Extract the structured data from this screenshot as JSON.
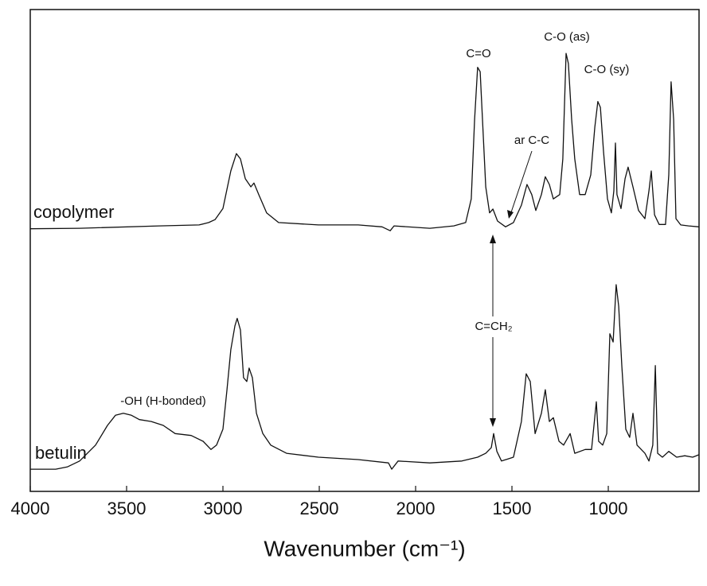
{
  "chart_data": {
    "type": "line",
    "xlabel": "Wavenumber (cm⁻¹)",
    "xlim": [
      4000,
      529
    ],
    "ylim": [
      0,
      100
    ],
    "xticks": [
      4000,
      3500,
      3000,
      2500,
      2000,
      1500,
      1000
    ],
    "grid": false,
    "series": [
      {
        "name": "copolymer",
        "color": "#111111",
        "x": [
          4000,
          3744,
          3331,
          3124,
          3074,
          3041,
          3000,
          2959,
          2930,
          2909,
          2884,
          2855,
          2839,
          2814,
          2773,
          2711,
          2504,
          2298,
          2174,
          2132,
          2112,
          1926,
          1802,
          1740,
          1711,
          1694,
          1678,
          1665,
          1653,
          1636,
          1616,
          1599,
          1575,
          1533,
          1492,
          1451,
          1422,
          1397,
          1376,
          1347,
          1327,
          1306,
          1285,
          1252,
          1236,
          1219,
          1207,
          1190,
          1174,
          1149,
          1120,
          1091,
          1070,
          1054,
          1041,
          1025,
          1004,
          984,
          971,
          963,
          955,
          934,
          913,
          897,
          872,
          843,
          810,
          789,
          777,
          760,
          736,
          703,
          686,
          674,
          661,
          649,
          624,
          583,
          529
        ],
        "values": [
          54.5,
          54.6,
          55.1,
          55.3,
          55.8,
          56.4,
          58.7,
          66.5,
          70.1,
          69.0,
          64.9,
          63.2,
          64.0,
          61.6,
          57.8,
          55.8,
          55.3,
          55.3,
          54.9,
          54.1,
          55.1,
          54.6,
          55.1,
          55.8,
          60.7,
          77.2,
          88.0,
          87.1,
          77.2,
          63.2,
          57.8,
          58.6,
          56.1,
          54.9,
          55.8,
          59.4,
          63.7,
          61.6,
          58.3,
          61.6,
          65.3,
          63.7,
          60.7,
          61.6,
          69.0,
          90.9,
          88.8,
          77.2,
          69.0,
          61.6,
          61.6,
          65.7,
          75.6,
          80.9,
          79.7,
          70.6,
          60.7,
          57.8,
          62.4,
          72.3,
          61.6,
          58.7,
          64.9,
          67.3,
          63.2,
          58.3,
          56.6,
          62.4,
          66.5,
          57.4,
          55.4,
          55.4,
          65.7,
          85.0,
          77.2,
          56.6,
          55.3,
          55.1,
          54.9
        ]
      },
      {
        "name": "betulin",
        "color": "#111111",
        "x": [
          4000,
          3868,
          3806,
          3744,
          3661,
          3599,
          3558,
          3517,
          3475,
          3434,
          3372,
          3310,
          3248,
          3165,
          3103,
          3062,
          3033,
          3000,
          2979,
          2959,
          2938,
          2926,
          2909,
          2893,
          2876,
          2864,
          2847,
          2826,
          2793,
          2752,
          2670,
          2504,
          2298,
          2141,
          2124,
          2091,
          1926,
          1760,
          1678,
          1636,
          1607,
          1595,
          1578,
          1554,
          1492,
          1451,
          1426,
          1405,
          1380,
          1347,
          1327,
          1306,
          1285,
          1256,
          1232,
          1198,
          1174,
          1120,
          1087,
          1062,
          1050,
          1029,
          1008,
          992,
          975,
          959,
          946,
          930,
          909,
          889,
          872,
          851,
          810,
          789,
          769,
          756,
          744,
          719,
          686,
          645,
          603,
          562,
          529
        ],
        "values": [
          4.6,
          4.6,
          5.1,
          6.3,
          9.6,
          13.7,
          15.8,
          16.2,
          15.8,
          14.9,
          14.5,
          13.7,
          12.0,
          11.6,
          10.4,
          8.7,
          9.6,
          12.9,
          21.1,
          29.4,
          34.3,
          35.9,
          33.5,
          23.6,
          22.8,
          25.6,
          23.6,
          16.2,
          12.0,
          9.6,
          7.9,
          7.1,
          6.6,
          5.9,
          4.6,
          6.3,
          5.9,
          6.3,
          7.1,
          7.9,
          9.1,
          12.0,
          8.3,
          6.3,
          7.1,
          14.5,
          24.4,
          22.8,
          12.0,
          16.2,
          21.1,
          14.5,
          15.3,
          10.4,
          9.6,
          12.0,
          7.9,
          8.7,
          8.7,
          18.6,
          10.4,
          9.6,
          12.0,
          32.7,
          31.0,
          42.9,
          38.4,
          26.1,
          12.9,
          11.2,
          16.2,
          9.6,
          7.9,
          6.3,
          9.6,
          26.1,
          7.9,
          7.1,
          8.3,
          7.1,
          7.4,
          7.1,
          7.6
        ]
      }
    ],
    "annotations": [
      "C=O",
      "C-O (as)",
      "C-O (sy)",
      "ar C-C",
      "-OH (H-bonded)",
      "C=CH₂"
    ]
  }
}
